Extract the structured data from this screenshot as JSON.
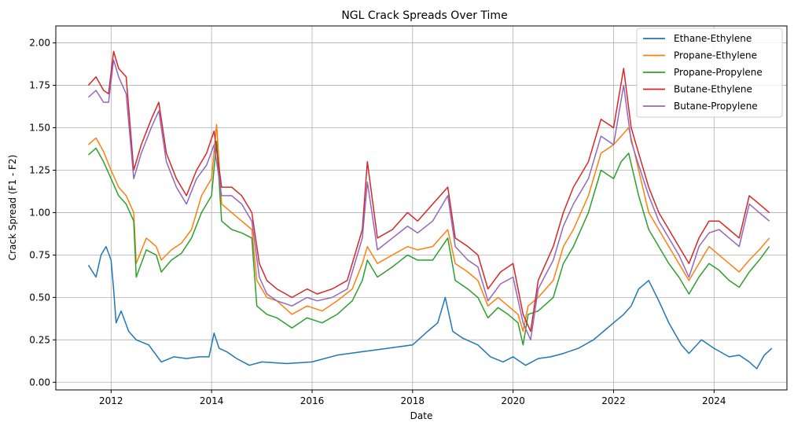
{
  "chart_data": {
    "type": "line",
    "title": "NGL Crack Spreads Over Time",
    "xlabel": "Date",
    "ylabel": "Crack Spread (F1 - F2)",
    "xlim": [
      2010.9,
      2025.45
    ],
    "ylim": [
      -0.045,
      2.1
    ],
    "grid": true,
    "legend_position": "top-right",
    "x_ticks": [
      {
        "value": 2012,
        "label": "2012"
      },
      {
        "value": 2014,
        "label": "2014"
      },
      {
        "value": 2016,
        "label": "2016"
      },
      {
        "value": 2018,
        "label": "2018"
      },
      {
        "value": 2020,
        "label": "2020"
      },
      {
        "value": 2022,
        "label": "2022"
      },
      {
        "value": 2024,
        "label": "2024"
      }
    ],
    "y_ticks": [
      {
        "value": 0.0,
        "label": "0.00"
      },
      {
        "value": 0.25,
        "label": "0.25"
      },
      {
        "value": 0.5,
        "label": "0.50"
      },
      {
        "value": 0.75,
        "label": "0.75"
      },
      {
        "value": 1.0,
        "label": "1.00"
      },
      {
        "value": 1.25,
        "label": "1.25"
      },
      {
        "value": 1.5,
        "label": "1.50"
      },
      {
        "value": 1.75,
        "label": "1.75"
      },
      {
        "value": 2.0,
        "label": "2.00"
      }
    ],
    "series": [
      {
        "name": "Ethane-Ethylene",
        "color": "#1f77b4",
        "x": [
          2011.55,
          2011.7,
          2011.8,
          2011.9,
          2012.0,
          2012.05,
          2012.1,
          2012.2,
          2012.35,
          2012.5,
          2012.75,
          2013.0,
          2013.25,
          2013.5,
          2013.75,
          2013.95,
          2014.05,
          2014.15,
          2014.3,
          2014.5,
          2014.75,
          2015.0,
          2015.5,
          2016.0,
          2016.5,
          2017.0,
          2017.5,
          2018.0,
          2018.3,
          2018.5,
          2018.65,
          2018.8,
          2019.0,
          2019.3,
          2019.55,
          2019.8,
          2020.0,
          2020.25,
          2020.5,
          2020.75,
          2021.0,
          2021.3,
          2021.6,
          2021.8,
          2022.0,
          2022.2,
          2022.35,
          2022.5,
          2022.7,
          2022.9,
          2023.1,
          2023.35,
          2023.5,
          2023.75,
          2024.0,
          2024.3,
          2024.5,
          2024.7,
          2024.85,
          2025.0,
          2025.15
        ],
        "y": [
          0.69,
          0.62,
          0.75,
          0.8,
          0.72,
          0.55,
          0.35,
          0.42,
          0.3,
          0.25,
          0.22,
          0.12,
          0.15,
          0.14,
          0.15,
          0.15,
          0.29,
          0.2,
          0.18,
          0.14,
          0.1,
          0.12,
          0.11,
          0.12,
          0.16,
          0.18,
          0.2,
          0.22,
          0.3,
          0.35,
          0.5,
          0.3,
          0.26,
          0.22,
          0.15,
          0.12,
          0.15,
          0.1,
          0.14,
          0.15,
          0.17,
          0.2,
          0.25,
          0.3,
          0.35,
          0.4,
          0.45,
          0.55,
          0.6,
          0.48,
          0.35,
          0.22,
          0.17,
          0.25,
          0.2,
          0.15,
          0.16,
          0.12,
          0.08,
          0.16,
          0.2
        ]
      },
      {
        "name": "Propane-Ethylene",
        "color": "#ff7f0e",
        "x": [
          2011.55,
          2011.7,
          2011.85,
          2012.0,
          2012.15,
          2012.3,
          2012.45,
          2012.5,
          2012.7,
          2012.9,
          2013.0,
          2013.2,
          2013.4,
          2013.6,
          2013.8,
          2014.0,
          2014.1,
          2014.2,
          2014.4,
          2014.6,
          2014.8,
          2014.9,
          2015.1,
          2015.3,
          2015.6,
          2015.9,
          2016.2,
          2016.5,
          2016.8,
          2017.0,
          2017.1,
          2017.3,
          2017.6,
          2017.9,
          2018.1,
          2018.4,
          2018.7,
          2018.85,
          2019.1,
          2019.3,
          2019.5,
          2019.7,
          2019.9,
          2020.1,
          2020.2,
          2020.3,
          2020.5,
          2020.8,
          2021.0,
          2021.2,
          2021.5,
          2021.75,
          2022.0,
          2022.15,
          2022.3,
          2022.5,
          2022.7,
          2022.9,
          2023.1,
          2023.3,
          2023.5,
          2023.7,
          2023.9,
          2024.1,
          2024.3,
          2024.5,
          2024.7,
          2024.9,
          2025.1
        ],
        "y": [
          1.4,
          1.44,
          1.36,
          1.25,
          1.15,
          1.1,
          1.0,
          0.7,
          0.85,
          0.8,
          0.72,
          0.78,
          0.82,
          0.9,
          1.1,
          1.2,
          1.52,
          1.05,
          1.0,
          0.95,
          0.9,
          0.6,
          0.5,
          0.48,
          0.4,
          0.45,
          0.42,
          0.48,
          0.55,
          0.7,
          0.8,
          0.7,
          0.75,
          0.8,
          0.78,
          0.8,
          0.9,
          0.7,
          0.65,
          0.6,
          0.45,
          0.5,
          0.45,
          0.4,
          0.3,
          0.45,
          0.5,
          0.6,
          0.8,
          0.9,
          1.1,
          1.35,
          1.4,
          1.45,
          1.5,
          1.25,
          1.0,
          0.9,
          0.8,
          0.7,
          0.6,
          0.7,
          0.8,
          0.75,
          0.7,
          0.65,
          0.72,
          0.78,
          0.85
        ]
      },
      {
        "name": "Propane-Propylene",
        "color": "#2ca02c",
        "x": [
          2011.55,
          2011.7,
          2011.85,
          2012.0,
          2012.15,
          2012.3,
          2012.45,
          2012.5,
          2012.7,
          2012.9,
          2013.0,
          2013.2,
          2013.4,
          2013.6,
          2013.8,
          2014.0,
          2014.1,
          2014.2,
          2014.4,
          2014.6,
          2014.8,
          2014.9,
          2015.1,
          2015.3,
          2015.6,
          2015.9,
          2016.2,
          2016.5,
          2016.8,
          2017.0,
          2017.1,
          2017.3,
          2017.6,
          2017.9,
          2018.1,
          2018.4,
          2018.7,
          2018.85,
          2019.1,
          2019.3,
          2019.5,
          2019.7,
          2019.9,
          2020.1,
          2020.2,
          2020.3,
          2020.5,
          2020.8,
          2021.0,
          2021.2,
          2021.5,
          2021.75,
          2022.0,
          2022.15,
          2022.3,
          2022.5,
          2022.7,
          2022.9,
          2023.1,
          2023.3,
          2023.5,
          2023.7,
          2023.9,
          2024.1,
          2024.3,
          2024.5,
          2024.7,
          2024.9,
          2025.1
        ],
        "y": [
          1.34,
          1.38,
          1.3,
          1.2,
          1.1,
          1.05,
          0.95,
          0.62,
          0.78,
          0.75,
          0.65,
          0.72,
          0.76,
          0.85,
          1.0,
          1.1,
          1.42,
          0.95,
          0.9,
          0.88,
          0.85,
          0.45,
          0.4,
          0.38,
          0.32,
          0.38,
          0.35,
          0.4,
          0.48,
          0.6,
          0.72,
          0.62,
          0.68,
          0.75,
          0.72,
          0.72,
          0.85,
          0.6,
          0.55,
          0.5,
          0.38,
          0.44,
          0.4,
          0.35,
          0.22,
          0.4,
          0.42,
          0.5,
          0.7,
          0.8,
          1.0,
          1.25,
          1.2,
          1.3,
          1.35,
          1.1,
          0.9,
          0.8,
          0.7,
          0.62,
          0.52,
          0.62,
          0.7,
          0.66,
          0.6,
          0.56,
          0.65,
          0.72,
          0.8
        ]
      },
      {
        "name": "Butane-Ethylene",
        "color": "#d62728",
        "x": [
          2011.55,
          2011.7,
          2011.85,
          2011.95,
          2012.05,
          2012.15,
          2012.3,
          2012.45,
          2012.6,
          2012.8,
          2012.95,
          2013.1,
          2013.3,
          2013.5,
          2013.7,
          2013.9,
          2014.05,
          2014.2,
          2014.4,
          2014.6,
          2014.8,
          2014.95,
          2015.1,
          2015.3,
          2015.6,
          2015.9,
          2016.1,
          2016.4,
          2016.7,
          2017.0,
          2017.1,
          2017.3,
          2017.6,
          2017.9,
          2018.1,
          2018.4,
          2018.7,
          2018.85,
          2019.1,
          2019.3,
          2019.5,
          2019.75,
          2020.0,
          2020.2,
          2020.35,
          2020.5,
          2020.8,
          2021.0,
          2021.2,
          2021.5,
          2021.75,
          2022.0,
          2022.2,
          2022.35,
          2022.5,
          2022.7,
          2022.9,
          2023.1,
          2023.3,
          2023.5,
          2023.7,
          2023.9,
          2024.1,
          2024.3,
          2024.5,
          2024.7,
          2024.9,
          2025.1
        ],
        "y": [
          1.75,
          1.8,
          1.72,
          1.7,
          1.95,
          1.85,
          1.8,
          1.25,
          1.4,
          1.55,
          1.65,
          1.35,
          1.2,
          1.1,
          1.25,
          1.35,
          1.48,
          1.15,
          1.15,
          1.1,
          1.0,
          0.7,
          0.6,
          0.55,
          0.5,
          0.55,
          0.52,
          0.55,
          0.6,
          0.9,
          1.3,
          0.85,
          0.9,
          1.0,
          0.95,
          1.05,
          1.15,
          0.85,
          0.8,
          0.75,
          0.55,
          0.65,
          0.7,
          0.4,
          0.3,
          0.6,
          0.8,
          1.0,
          1.15,
          1.3,
          1.55,
          1.5,
          1.85,
          1.5,
          1.35,
          1.15,
          1.0,
          0.9,
          0.8,
          0.7,
          0.85,
          0.95,
          0.95,
          0.9,
          0.85,
          1.1,
          1.05,
          1.0
        ]
      },
      {
        "name": "Butane-Propylene",
        "color": "#9467bd",
        "x": [
          2011.55,
          2011.7,
          2011.85,
          2011.95,
          2012.05,
          2012.15,
          2012.3,
          2012.45,
          2012.6,
          2012.8,
          2012.95,
          2013.1,
          2013.3,
          2013.5,
          2013.7,
          2013.9,
          2014.05,
          2014.2,
          2014.4,
          2014.6,
          2014.8,
          2014.95,
          2015.1,
          2015.3,
          2015.6,
          2015.9,
          2016.1,
          2016.4,
          2016.7,
          2017.0,
          2017.1,
          2017.3,
          2017.6,
          2017.9,
          2018.1,
          2018.4,
          2018.7,
          2018.85,
          2019.1,
          2019.3,
          2019.5,
          2019.75,
          2020.0,
          2020.2,
          2020.35,
          2020.5,
          2020.8,
          2021.0,
          2021.2,
          2021.5,
          2021.75,
          2022.0,
          2022.2,
          2022.35,
          2022.5,
          2022.7,
          2022.9,
          2023.1,
          2023.3,
          2023.5,
          2023.7,
          2023.9,
          2024.1,
          2024.3,
          2024.5,
          2024.7,
          2024.9,
          2025.1
        ],
        "y": [
          1.68,
          1.72,
          1.65,
          1.65,
          1.9,
          1.8,
          1.7,
          1.2,
          1.35,
          1.5,
          1.6,
          1.3,
          1.15,
          1.05,
          1.2,
          1.28,
          1.4,
          1.1,
          1.1,
          1.05,
          0.95,
          0.62,
          0.52,
          0.48,
          0.45,
          0.5,
          0.48,
          0.5,
          0.55,
          0.85,
          1.18,
          0.78,
          0.85,
          0.92,
          0.88,
          0.95,
          1.1,
          0.8,
          0.72,
          0.68,
          0.48,
          0.58,
          0.62,
          0.35,
          0.25,
          0.55,
          0.72,
          0.92,
          1.05,
          1.2,
          1.45,
          1.4,
          1.75,
          1.42,
          1.28,
          1.1,
          0.95,
          0.85,
          0.75,
          0.62,
          0.8,
          0.88,
          0.9,
          0.85,
          0.8,
          1.05,
          1.0,
          0.95
        ]
      }
    ]
  }
}
